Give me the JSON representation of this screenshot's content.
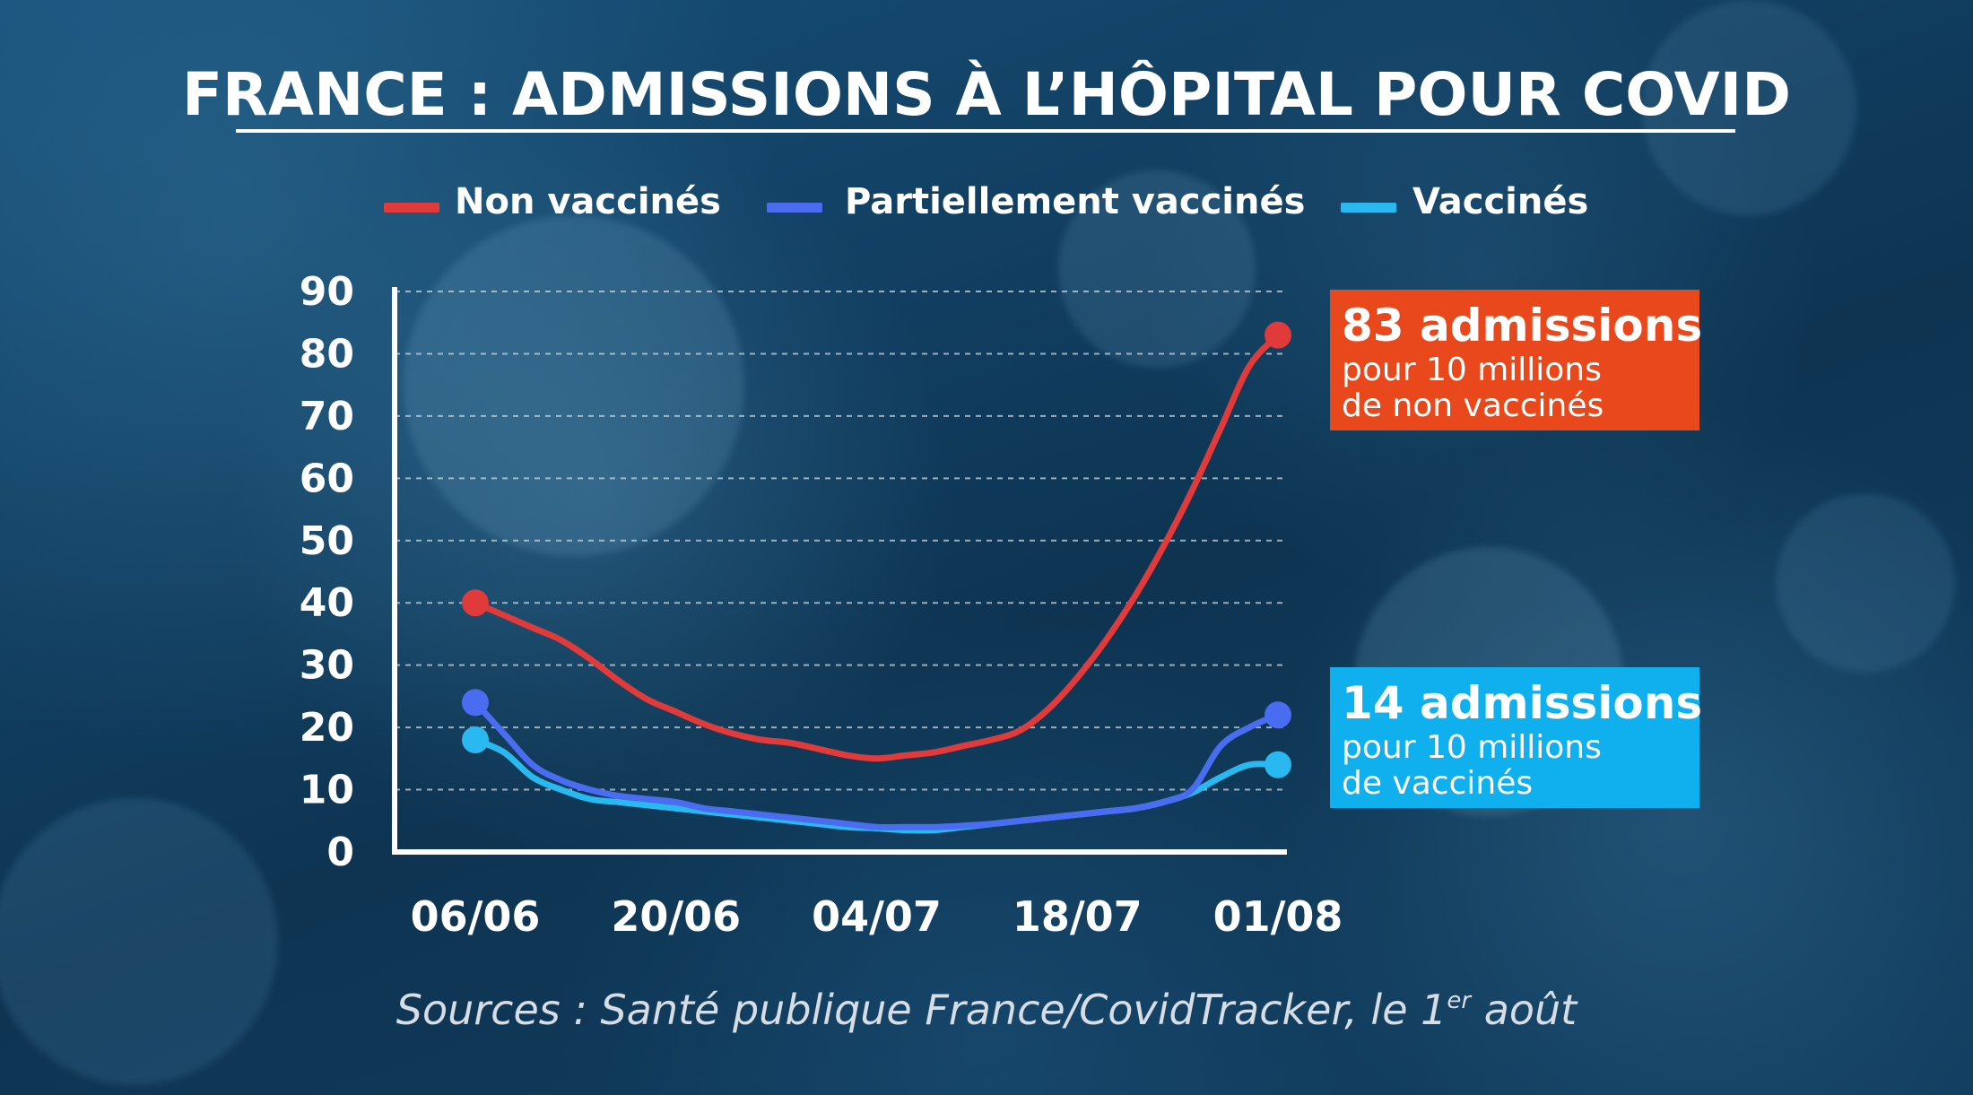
{
  "chart_data": {
    "type": "line",
    "title": "FRANCE : ADMISSIONS À L’HÔPITAL POUR COVID",
    "xlabel": "",
    "ylabel": "",
    "ylim": [
      0,
      90
    ],
    "yticks": [
      0,
      10,
      20,
      30,
      40,
      50,
      60,
      70,
      80,
      90
    ],
    "xlim": [
      "2021-06-06",
      "2021-08-01"
    ],
    "xtick_labels": [
      "06/06",
      "20/06",
      "04/07",
      "18/07",
      "01/08"
    ],
    "xtick_dates": [
      "2021-06-06",
      "2021-06-20",
      "2021-07-04",
      "2021-07-18",
      "2021-08-01"
    ],
    "grid": true,
    "legend_position": "top",
    "series": [
      {
        "name": "Non vaccinés",
        "color": "#e03a3a",
        "points": [
          [
            "2021-06-06",
            40
          ],
          [
            "2021-06-08",
            38
          ],
          [
            "2021-06-10",
            36
          ],
          [
            "2021-06-12",
            34
          ],
          [
            "2021-06-14",
            31
          ],
          [
            "2021-06-16",
            27.5
          ],
          [
            "2021-06-18",
            24.5
          ],
          [
            "2021-06-20",
            22.5
          ],
          [
            "2021-06-22",
            20.5
          ],
          [
            "2021-06-24",
            19
          ],
          [
            "2021-06-26",
            18
          ],
          [
            "2021-06-28",
            17.5
          ],
          [
            "2021-06-30",
            16.5
          ],
          [
            "2021-07-02",
            15.5
          ],
          [
            "2021-07-04",
            15
          ],
          [
            "2021-07-06",
            15.5
          ],
          [
            "2021-07-08",
            16
          ],
          [
            "2021-07-10",
            17
          ],
          [
            "2021-07-12",
            18
          ],
          [
            "2021-07-14",
            19.5
          ],
          [
            "2021-07-16",
            23
          ],
          [
            "2021-07-18",
            28
          ],
          [
            "2021-07-20",
            34
          ],
          [
            "2021-07-22",
            41
          ],
          [
            "2021-07-24",
            49
          ],
          [
            "2021-07-26",
            58
          ],
          [
            "2021-07-28",
            68
          ],
          [
            "2021-07-30",
            78
          ],
          [
            "2021-08-01",
            83
          ]
        ]
      },
      {
        "name": "Partiellement vaccinés",
        "color": "#4a6cf0",
        "points": [
          [
            "2021-06-06",
            24
          ],
          [
            "2021-06-08",
            19
          ],
          [
            "2021-06-10",
            14
          ],
          [
            "2021-06-12",
            11.5
          ],
          [
            "2021-06-14",
            10
          ],
          [
            "2021-06-16",
            9
          ],
          [
            "2021-06-18",
            8.5
          ],
          [
            "2021-06-20",
            8
          ],
          [
            "2021-06-22",
            7
          ],
          [
            "2021-06-24",
            6.5
          ],
          [
            "2021-06-26",
            6
          ],
          [
            "2021-06-28",
            5.5
          ],
          [
            "2021-06-30",
            5
          ],
          [
            "2021-07-02",
            4.5
          ],
          [
            "2021-07-04",
            4
          ],
          [
            "2021-07-06",
            4
          ],
          [
            "2021-07-08",
            4
          ],
          [
            "2021-07-10",
            4.2
          ],
          [
            "2021-07-12",
            4.5
          ],
          [
            "2021-07-14",
            5
          ],
          [
            "2021-07-16",
            5.5
          ],
          [
            "2021-07-18",
            6
          ],
          [
            "2021-07-20",
            6.5
          ],
          [
            "2021-07-22",
            7
          ],
          [
            "2021-07-24",
            8
          ],
          [
            "2021-07-26",
            10
          ],
          [
            "2021-07-28",
            17
          ],
          [
            "2021-07-30",
            20
          ],
          [
            "2021-08-01",
            22
          ]
        ]
      },
      {
        "name": "Vaccinés",
        "color": "#2ab8f0",
        "points": [
          [
            "2021-06-06",
            18
          ],
          [
            "2021-06-08",
            16
          ],
          [
            "2021-06-10",
            12
          ],
          [
            "2021-06-12",
            10
          ],
          [
            "2021-06-14",
            8.5
          ],
          [
            "2021-06-16",
            8
          ],
          [
            "2021-06-18",
            7.5
          ],
          [
            "2021-06-20",
            7
          ],
          [
            "2021-06-22",
            6.5
          ],
          [
            "2021-06-24",
            6
          ],
          [
            "2021-06-26",
            5.5
          ],
          [
            "2021-06-28",
            5
          ],
          [
            "2021-06-30",
            4.5
          ],
          [
            "2021-07-02",
            4
          ],
          [
            "2021-07-04",
            3.8
          ],
          [
            "2021-07-06",
            3.5
          ],
          [
            "2021-07-08",
            3.5
          ],
          [
            "2021-07-10",
            4
          ],
          [
            "2021-07-12",
            4.5
          ],
          [
            "2021-07-14",
            5
          ],
          [
            "2021-07-16",
            5.5
          ],
          [
            "2021-07-18",
            6
          ],
          [
            "2021-07-20",
            6.5
          ],
          [
            "2021-07-22",
            7
          ],
          [
            "2021-07-24",
            8
          ],
          [
            "2021-07-26",
            9.5
          ],
          [
            "2021-07-28",
            12
          ],
          [
            "2021-07-30",
            14
          ],
          [
            "2021-08-01",
            14
          ]
        ]
      }
    ],
    "annotations": [
      {
        "series": "Non vaccinés",
        "big": "83 admissions",
        "line1": "pour 10 millions",
        "line2": "de non vaccinés",
        "bg_color": "#e8481c"
      },
      {
        "series": "Vaccinés",
        "big": "14 admissions",
        "line1": "pour 10 millions",
        "line2": "de vaccinés",
        "bg_color": "#10b0ee"
      }
    ],
    "source": "Sources : Santé publique France/CovidTracker, le 1",
    "source_superscript": "er",
    "source_suffix": " août"
  }
}
